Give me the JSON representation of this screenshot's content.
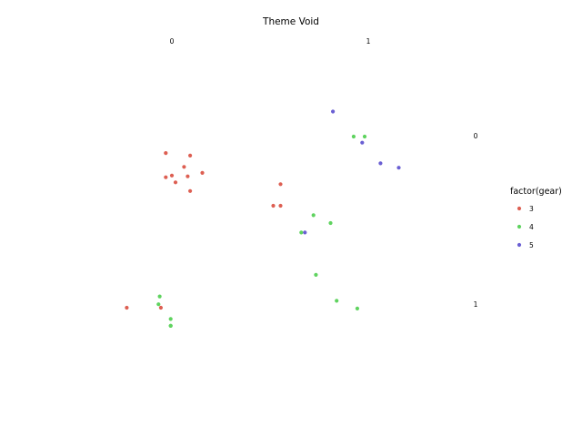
{
  "chart_data": {
    "type": "scatter",
    "title": "Theme Void",
    "facet_cols": [
      "0",
      "1"
    ],
    "facet_rows": [
      "0",
      "1"
    ],
    "legend": {
      "title": "factor(gear)",
      "position": "right",
      "entries": [
        {
          "label": "3",
          "color": "#dd5f52"
        },
        {
          "label": "4",
          "color": "#5fd35f"
        },
        {
          "label": "5",
          "color": "#6a5fd3"
        }
      ]
    },
    "grid": false,
    "axes": false,
    "panels": [
      {
        "col": "0",
        "row": "0",
        "points": [
          {
            "x": -0.05,
            "y": -0.21,
            "g": "3"
          },
          {
            "x": 0.15,
            "y": -0.18,
            "g": "3"
          },
          {
            "x": 0.1,
            "y": -0.05,
            "g": "3"
          },
          {
            "x": 0.25,
            "y": 0.02,
            "g": "3"
          },
          {
            "x": -0.05,
            "y": 0.07,
            "g": "3"
          },
          {
            "x": 0.0,
            "y": 0.05,
            "g": "3"
          },
          {
            "x": 0.13,
            "y": 0.06,
            "g": "3"
          },
          {
            "x": 0.03,
            "y": 0.13,
            "g": "3"
          },
          {
            "x": 0.15,
            "y": 0.23,
            "g": "3"
          }
        ]
      },
      {
        "col": "1",
        "row": "0",
        "points": [
          {
            "x": -0.72,
            "y": 0.15,
            "g": "3"
          },
          {
            "x": -0.78,
            "y": 0.4,
            "g": "3"
          },
          {
            "x": -0.72,
            "y": 0.4,
            "g": "3"
          },
          {
            "x": -0.45,
            "y": 0.51,
            "g": "4"
          },
          {
            "x": -0.31,
            "y": 0.6,
            "g": "4"
          },
          {
            "x": -0.55,
            "y": 0.71,
            "g": "4"
          },
          {
            "x": -0.52,
            "y": 0.71,
            "g": "5"
          },
          {
            "x": -0.29,
            "y": -0.69,
            "g": "5"
          },
          {
            "x": -0.12,
            "y": -0.4,
            "g": "4"
          },
          {
            "x": -0.03,
            "y": -0.4,
            "g": "4"
          },
          {
            "x": -0.05,
            "y": -0.33,
            "g": "5"
          },
          {
            "x": 0.1,
            "y": -0.09,
            "g": "5"
          },
          {
            "x": 0.25,
            "y": -0.04,
            "g": "5"
          }
        ]
      },
      {
        "col": "0",
        "row": "1",
        "points": [
          {
            "x": -0.1,
            "y": -0.13,
            "g": "4"
          },
          {
            "x": -0.11,
            "y": -0.04,
            "g": "4"
          },
          {
            "x": -0.37,
            "y": 0.0,
            "g": "3"
          },
          {
            "x": -0.09,
            "y": 0.0,
            "g": "3"
          },
          {
            "x": -0.01,
            "y": 0.13,
            "g": "4"
          },
          {
            "x": -0.01,
            "y": 0.21,
            "g": "4"
          },
          {
            "x": -0.01,
            "y": 0.21,
            "g": "4"
          }
        ]
      },
      {
        "col": "1",
        "row": "1",
        "points": [
          {
            "x": -0.43,
            "y": -0.38,
            "g": "4"
          },
          {
            "x": -0.26,
            "y": -0.08,
            "g": "4"
          },
          {
            "x": -0.09,
            "y": 0.01,
            "g": "4"
          }
        ]
      }
    ]
  }
}
